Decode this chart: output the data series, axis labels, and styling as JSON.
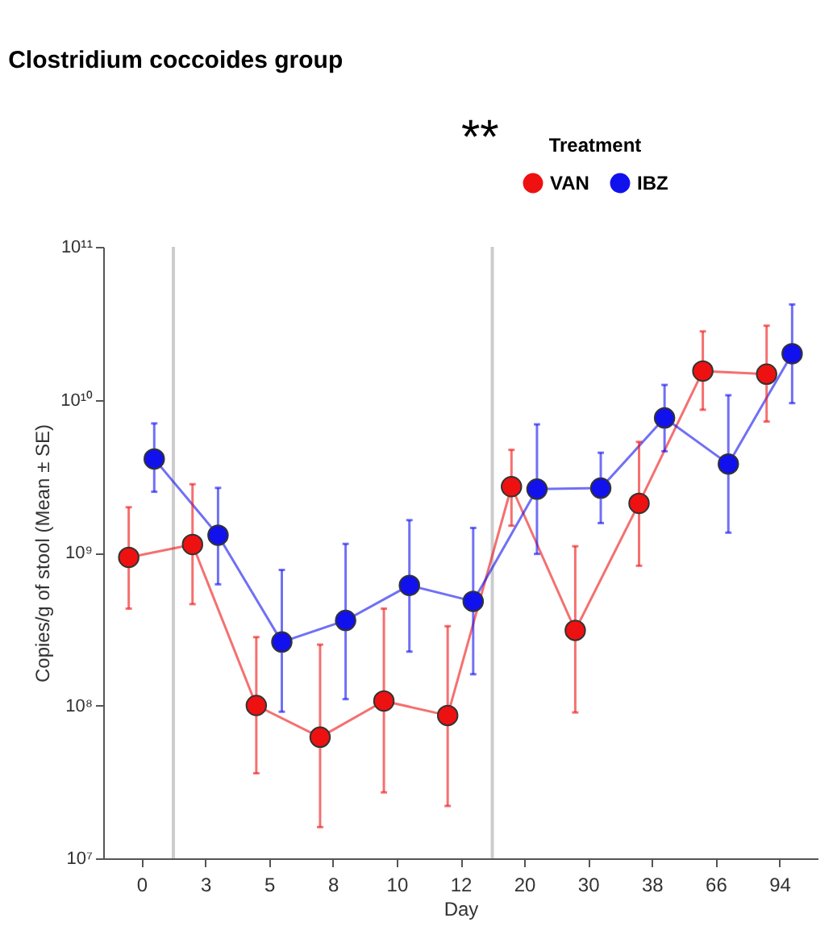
{
  "chart_data": {
    "type": "line",
    "title": "Clostridium coccoides group",
    "xlabel": "Day",
    "ylabel": "Copies/g of stool (Mean  ± SE)",
    "legend_title": "Treatment",
    "legend": "top right",
    "log": "y",
    "marker": "circle",
    "line_style": "solid",
    "annotations": [
      "**"
    ],
    "categories": [
      "0",
      "3",
      "5",
      "8",
      "10",
      "12",
      "20",
      "30",
      "38",
      "66",
      "94"
    ],
    "ylim": [
      10000000.0,
      100000000000.0
    ],
    "yticks": [
      {
        "value": 10000000.0,
        "label": "10⁷"
      },
      {
        "value": 100000000.0,
        "label": "10⁸"
      },
      {
        "value": 1000000000.0,
        "label": "10⁹"
      },
      {
        "value": 10000000000.0,
        "label": "10¹⁰"
      },
      {
        "value": 100000000000.0,
        "label": "10¹¹"
      }
    ],
    "series": [
      {
        "name": "VAN",
        "color": "#ee1111",
        "values": [
          930000000.0,
          1130000000.0,
          100000000.0,
          62000000.0,
          107000000.0,
          86000000.0,
          2700000000.0,
          310000000.0,
          2100000000.0,
          15400000000.0,
          14700000000.0
        ],
        "errors": [
          [
            430000000.0,
            1980000000.0
          ],
          [
            460000000.0,
            2800000000.0
          ],
          [
            36000000.0,
            280000000.0
          ],
          [
            16000000.0,
            250000000.0
          ],
          [
            27000000.0,
            430000000.0
          ],
          [
            22000000.0,
            330000000.0
          ],
          [
            1500000000.0,
            4700000000.0
          ],
          [
            90000000.0,
            1100000000.0
          ],
          [
            820000000.0,
            5300000000.0
          ],
          [
            8600000000.0,
            28000000000.0
          ],
          [
            7200000000.0,
            30500000000.0
          ]
        ]
      },
      {
        "name": "IBZ",
        "color": "#1111ee",
        "values": [
          4100000000.0,
          1300000000.0,
          260000000.0,
          360000000.0,
          610000000.0,
          480000000.0,
          2600000000.0,
          2640000000.0,
          7600000000.0,
          3800000000.0,
          20000000000.0
        ],
        "errors": [
          [
            2500000000.0,
            7000000000.0
          ],
          [
            620000000.0,
            2650000000.0
          ],
          [
            91000000.0,
            770000000.0
          ],
          [
            110000000.0,
            1140000000.0
          ],
          [
            225000000.0,
            1630000000.0
          ],
          [
            160000000.0,
            1450000000.0
          ],
          [
            980000000.0,
            6900000000.0
          ],
          [
            1560000000.0,
            4500000000.0
          ],
          [
            4600000000.0,
            12500000000.0
          ],
          [
            1350000000.0,
            10700000000.0
          ],
          [
            9500000000.0,
            42000000000.0
          ]
        ]
      }
    ]
  }
}
